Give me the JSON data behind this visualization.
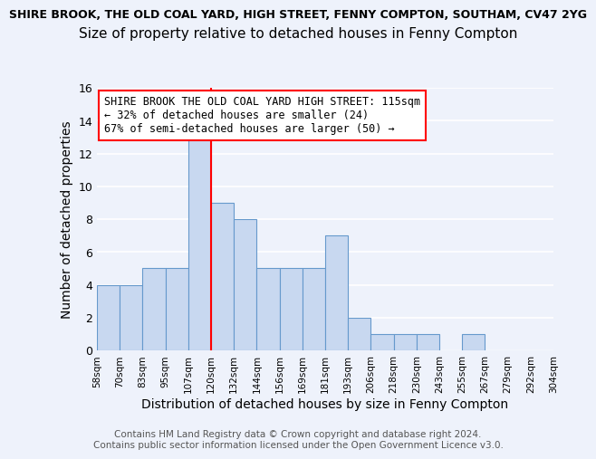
{
  "suptitle": "SHIRE BROOK, THE OLD COAL YARD, HIGH STREET, FENNY COMPTON, SOUTHAM, CV47 2YG",
  "title": "Size of property relative to detached houses in Fenny Compton",
  "xlabel": "Distribution of detached houses by size in Fenny Compton",
  "ylabel": "Number of detached properties",
  "bin_edges": [
    "58sqm",
    "70sqm",
    "83sqm",
    "95sqm",
    "107sqm",
    "120sqm",
    "132sqm",
    "144sqm",
    "156sqm",
    "169sqm",
    "181sqm",
    "193sqm",
    "206sqm",
    "218sqm",
    "230sqm",
    "243sqm",
    "255sqm",
    "267sqm",
    "279sqm",
    "292sqm",
    "304sqm"
  ],
  "bar_heights": [
    4,
    4,
    5,
    5,
    13,
    9,
    8,
    5,
    5,
    5,
    7,
    2,
    1,
    1,
    1,
    0,
    1,
    0,
    0,
    0
  ],
  "bar_color": "#c8d8f0",
  "bar_edgecolor": "#6699cc",
  "vline_pos": 5,
  "vline_color": "red",
  "ylim": [
    0,
    16
  ],
  "yticks": [
    0,
    2,
    4,
    6,
    8,
    10,
    12,
    14,
    16
  ],
  "annotation_line1": "SHIRE BROOK THE OLD COAL YARD HIGH STREET: 115sqm",
  "annotation_line2": "← 32% of detached houses are smaller (24)",
  "annotation_line3": "67% of semi-detached houses are larger (50) →",
  "footer1": "Contains HM Land Registry data © Crown copyright and database right 2024.",
  "footer2": "Contains public sector information licensed under the Open Government Licence v3.0.",
  "background_color": "#eef2fb",
  "grid_color": "white",
  "suptitle_fontsize": 9,
  "title_fontsize": 11,
  "xlabel_fontsize": 10,
  "ylabel_fontsize": 10,
  "annotation_fontsize": 8.5,
  "footer_fontsize": 7.5,
  "xtick_fontsize": 7.5,
  "ytick_fontsize": 9
}
